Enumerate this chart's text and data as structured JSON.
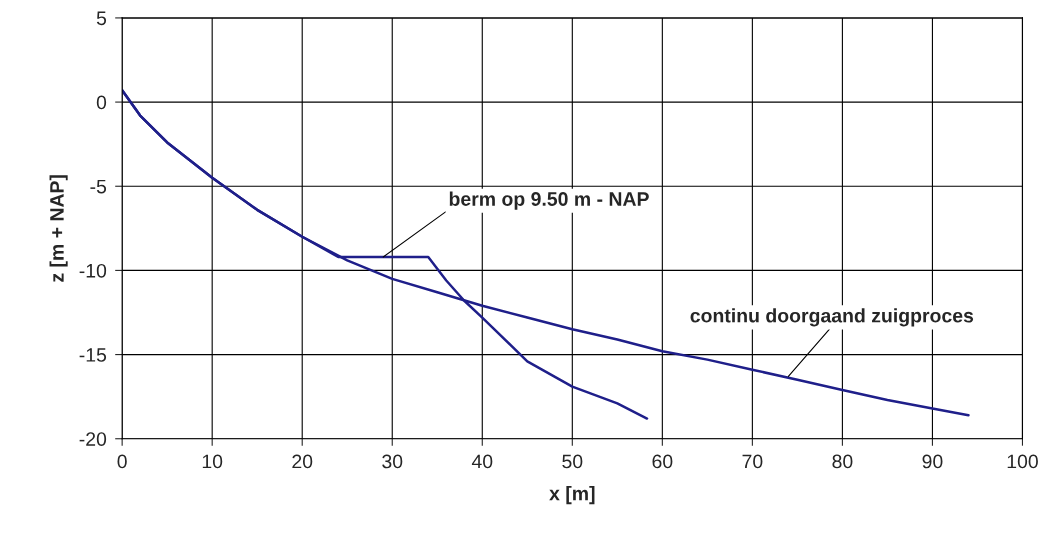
{
  "chart_data": {
    "type": "line",
    "xlabel": "x [m]",
    "ylabel": "z [m + NAP]",
    "xlim": [
      0,
      100
    ],
    "ylim": [
      -20,
      5
    ],
    "xticks": [
      0,
      10,
      20,
      30,
      40,
      50,
      60,
      70,
      80,
      90,
      100
    ],
    "yticks": [
      -20,
      -15,
      -10,
      -5,
      0,
      5
    ],
    "grid": true,
    "legend": false,
    "marker": "none",
    "line_style": "solid",
    "series": [
      {
        "color": "#1f1f8a",
        "x": [
          0,
          2,
          5,
          10,
          15,
          20,
          25,
          30,
          35,
          40,
          45,
          50,
          55,
          60,
          65,
          70,
          75,
          80,
          85,
          90,
          94
        ],
        "values": [
          0.7,
          -0.8,
          -2.4,
          -4.5,
          -6.4,
          -8.0,
          -9.4,
          -10.5,
          -11.3,
          -12.1,
          -12.8,
          -13.5,
          -14.1,
          -14.8,
          -15.3,
          -15.9,
          -16.5,
          -17.1,
          -17.7,
          -18.2,
          -18.6
        ]
      },
      {
        "color": "#1f1f8a",
        "x": [
          0,
          2,
          5,
          10,
          15,
          20,
          24,
          34,
          36,
          38,
          40,
          45,
          50,
          55,
          58.3
        ],
        "values": [
          0.7,
          -0.8,
          -2.4,
          -4.5,
          -6.4,
          -8.0,
          -9.2,
          -9.2,
          -10.6,
          -11.8,
          -12.8,
          -15.4,
          -16.9,
          -17.9,
          -18.8
        ]
      }
    ],
    "annotations": [
      {
        "text": "berm op 9.50 m - NAP",
        "x": 29,
        "y": -9.2
      },
      {
        "text": "continu doorgaand zuigproces",
        "x": 74,
        "y": -16.3
      }
    ]
  }
}
